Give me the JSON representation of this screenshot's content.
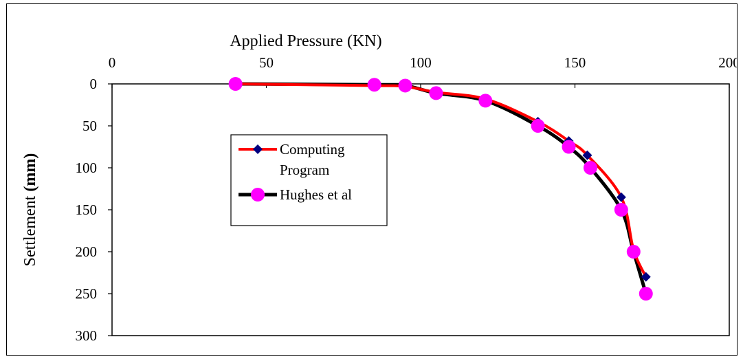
{
  "chart_data": {
    "type": "line",
    "title": "",
    "xlabel": "Applied Pressure (KN)",
    "ylabel_parts": {
      "normal": "Settlement ",
      "bold": "(mm)"
    },
    "x_axis_position": "top",
    "y_axis_inverted": true,
    "xlim": [
      0,
      200
    ],
    "ylim": [
      0,
      300
    ],
    "x_ticks": [
      "0",
      "50",
      "100",
      "150",
      "200"
    ],
    "y_ticks": [
      "0",
      "50",
      "100",
      "150",
      "200",
      "250",
      "300"
    ],
    "grid": false,
    "legend_position": "left-center",
    "series": [
      {
        "name_lines": [
          "Computing",
          "Program"
        ],
        "color": "#ff0000",
        "marker": "diamond",
        "marker_color": "#000080",
        "points": [
          {
            "x": 40,
            "y": 0
          },
          {
            "x": 85,
            "y": 2
          },
          {
            "x": 95,
            "y": 3
          },
          {
            "x": 105,
            "y": 10
          },
          {
            "x": 121,
            "y": 18
          },
          {
            "x": 138,
            "y": 45
          },
          {
            "x": 148,
            "y": 68
          },
          {
            "x": 154,
            "y": 85
          },
          {
            "x": 165,
            "y": 135
          },
          {
            "x": 169,
            "y": 198
          },
          {
            "x": 173,
            "y": 230
          }
        ]
      },
      {
        "name": "Hughes et al",
        "color": "#000000",
        "marker": "circle",
        "marker_color": "#ff00ff",
        "points": [
          {
            "x": 40,
            "y": 0
          },
          {
            "x": 85,
            "y": 1
          },
          {
            "x": 95,
            "y": 2
          },
          {
            "x": 105,
            "y": 11
          },
          {
            "x": 121,
            "y": 20
          },
          {
            "x": 138,
            "y": 50
          },
          {
            "x": 148,
            "y": 75
          },
          {
            "x": 155,
            "y": 100
          },
          {
            "x": 165,
            "y": 150
          },
          {
            "x": 169,
            "y": 200
          },
          {
            "x": 173,
            "y": 250
          }
        ]
      }
    ]
  }
}
